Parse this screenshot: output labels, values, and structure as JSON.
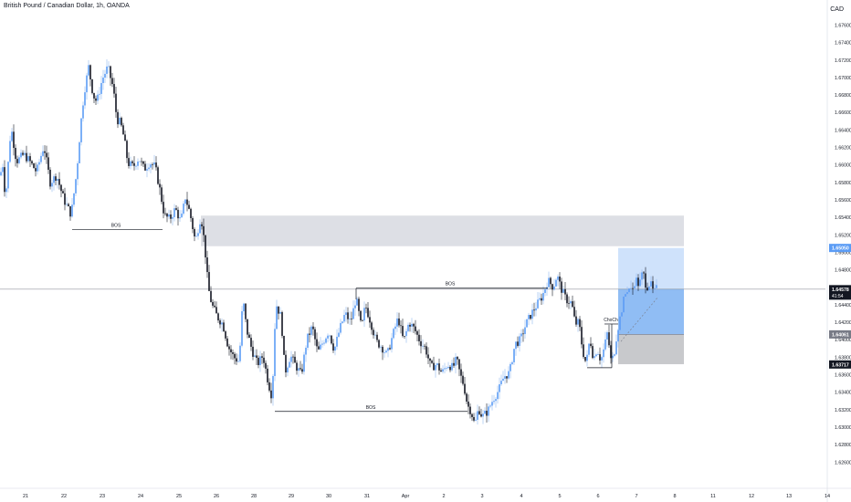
{
  "header": {
    "symbol_title": "British Pound / Canadian Dollar, 1h, OANDA",
    "currency": "CAD"
  },
  "chart_data": {
    "type": "candlestick",
    "title": "British Pound / Canadian Dollar, 1h, OANDA",
    "y_axis": {
      "side": "right",
      "ticks": [
        "1.67600",
        "1.67400",
        "1.67200",
        "1.67000",
        "1.66800",
        "1.66600",
        "1.66400",
        "1.66200",
        "1.66000",
        "1.65800",
        "1.65600",
        "1.65400",
        "1.65200",
        "1.65000",
        "1.64800",
        "1.64600",
        "1.64400",
        "1.64200",
        "1.64000",
        "1.63800",
        "1.63600",
        "1.63400",
        "1.63200",
        "1.63000",
        "1.62800",
        "1.62600"
      ],
      "ylim": [
        1.6253,
        1.6773
      ]
    },
    "x_axis": {
      "ticks": [
        "21",
        "22",
        "23",
        "24",
        "25",
        "26",
        "28",
        "29",
        "30",
        "31",
        "Apr",
        "2",
        "3",
        "4",
        "5",
        "6",
        "7",
        "8",
        "11",
        "12",
        "13",
        "14",
        "15",
        "18",
        "19"
      ]
    },
    "price_labels": [
      {
        "value": "1.65050",
        "color": "#5b9cf5",
        "text_color": "#ffffff"
      },
      {
        "value": "1.64578",
        "sub": "41:54",
        "color": "#131722",
        "text_color": "#ffffff"
      },
      {
        "value": "1.64061",
        "color": "#787b86",
        "text_color": "#ffffff"
      },
      {
        "value": "1.63717",
        "color": "#131722",
        "text_color": "#ffffff"
      }
    ],
    "current_price": 1.64578,
    "annotations": [
      {
        "type": "bos",
        "label": "BOS",
        "price": 1.6526,
        "from_day": "22",
        "to_day": "25"
      },
      {
        "type": "bos",
        "label": "BOS",
        "price": 1.6459,
        "from_day": "31",
        "to_day": "8"
      },
      {
        "type": "bos",
        "label": "BOS",
        "price": 1.6318,
        "from_day": "29",
        "to_day": "6"
      },
      {
        "type": "chach",
        "label": "ChoCh"
      },
      {
        "type": "supply_zone",
        "top": 1.6542,
        "bottom": 1.6507
      },
      {
        "type": "position_long",
        "entry": 1.64578,
        "target": 1.6505,
        "stop": 1.6372
      }
    ],
    "series": [
      {
        "key_points": [
          [
            0,
            1.6588
          ],
          [
            3,
            1.66
          ],
          [
            6,
            1.656
          ],
          [
            12,
            1.6644
          ],
          [
            18,
            1.6604
          ],
          [
            26,
            1.6612
          ],
          [
            32,
            1.6605
          ],
          [
            40,
            1.6592
          ],
          [
            48,
            1.6622
          ],
          [
            55,
            1.658
          ],
          [
            62,
            1.6588
          ],
          [
            70,
            1.656
          ],
          [
            78,
            1.6543
          ],
          [
            84,
            1.6592
          ],
          [
            88,
            1.6642
          ],
          [
            92,
            1.6682
          ],
          [
            97,
            1.6712
          ],
          [
            102,
            1.668
          ],
          [
            106,
            1.6672
          ],
          [
            112,
            1.6698
          ],
          [
            118,
            1.6712
          ],
          [
            124,
            1.6688
          ],
          [
            128,
            1.6652
          ],
          [
            132,
            1.6648
          ],
          [
            136,
            1.663
          ],
          [
            140,
            1.6602
          ],
          [
            146,
            1.6598
          ],
          [
            152,
            1.6608
          ],
          [
            158,
            1.6595
          ],
          [
            164,
            1.6603
          ],
          [
            170,
            1.6598
          ],
          [
            175,
            1.6572
          ],
          [
            180,
            1.6542
          ],
          [
            186,
            1.6538
          ],
          [
            192,
            1.655
          ],
          [
            198,
            1.6535
          ],
          [
            203,
            1.6563
          ],
          [
            208,
            1.6545
          ],
          [
            214,
            1.6512
          ],
          [
            220,
            1.6542
          ],
          [
            224,
            1.651
          ],
          [
            228,
            1.646
          ],
          [
            232,
            1.644
          ],
          [
            238,
            1.6426
          ],
          [
            244,
            1.6418
          ],
          [
            250,
            1.6392
          ],
          [
            256,
            1.638
          ],
          [
            262,
            1.6375
          ],
          [
            266,
            1.6448
          ],
          [
            270,
            1.6412
          ],
          [
            276,
            1.6388
          ],
          [
            282,
            1.6372
          ],
          [
            288,
            1.6382
          ],
          [
            294,
            1.635
          ],
          [
            298,
            1.6334
          ],
          [
            302,
            1.6442
          ],
          [
            308,
            1.6425
          ],
          [
            312,
            1.6362
          ],
          [
            318,
            1.6382
          ],
          [
            324,
            1.637
          ],
          [
            330,
            1.636
          ],
          [
            336,
            1.64
          ],
          [
            342,
            1.6415
          ],
          [
            348,
            1.6385
          ],
          [
            354,
            1.6398
          ],
          [
            360,
            1.641
          ],
          [
            366,
            1.6388
          ],
          [
            372,
            1.6412
          ],
          [
            378,
            1.643
          ],
          [
            384,
            1.642
          ],
          [
            390,
            1.6448
          ],
          [
            396,
            1.6412
          ],
          [
            400,
            1.644
          ],
          [
            406,
            1.642
          ],
          [
            412,
            1.6398
          ],
          [
            418,
            1.6392
          ],
          [
            424,
            1.6382
          ],
          [
            430,
            1.6405
          ],
          [
            436,
            1.6425
          ],
          [
            442,
            1.6398
          ],
          [
            448,
            1.642
          ],
          [
            454,
            1.6412
          ],
          [
            460,
            1.6398
          ],
          [
            466,
            1.639
          ],
          [
            472,
            1.6368
          ],
          [
            478,
            1.6372
          ],
          [
            484,
            1.6362
          ],
          [
            490,
            1.6372
          ],
          [
            496,
            1.6368
          ],
          [
            500,
            1.6378
          ],
          [
            504,
            1.636
          ],
          [
            508,
            1.6348
          ],
          [
            512,
            1.6325
          ],
          [
            516,
            1.6318
          ],
          [
            520,
            1.6302
          ],
          [
            524,
            1.6322
          ],
          [
            528,
            1.6312
          ],
          [
            534,
            1.6318
          ],
          [
            540,
            1.6332
          ],
          [
            546,
            1.6342
          ],
          [
            552,
            1.6358
          ],
          [
            558,
            1.6362
          ],
          [
            564,
            1.6395
          ],
          [
            570,
            1.64
          ],
          [
            576,
            1.6418
          ],
          [
            582,
            1.643
          ],
          [
            588,
            1.644
          ],
          [
            594,
            1.645
          ],
          [
            600,
            1.6468
          ],
          [
            606,
            1.646
          ],
          [
            610,
            1.6474
          ],
          [
            614,
            1.646
          ],
          [
            620,
            1.6446
          ],
          [
            626,
            1.6442
          ],
          [
            630,
            1.6418
          ],
          [
            634,
            1.642
          ],
          [
            638,
            1.6388
          ],
          [
            642,
            1.6372
          ],
          [
            646,
            1.6402
          ],
          [
            650,
            1.6378
          ],
          [
            654,
            1.639
          ],
          [
            658,
            1.6376
          ],
          [
            662,
            1.6392
          ],
          [
            666,
            1.6412
          ],
          [
            668,
            1.6376
          ],
          [
            672,
            1.638
          ],
          [
            676,
            1.641
          ],
          [
            680,
            1.643
          ],
          [
            684,
            1.645
          ],
          [
            688,
            1.646
          ],
          [
            692,
            1.6455
          ],
          [
            696,
            1.647
          ],
          [
            700,
            1.6462
          ],
          [
            704,
            1.6478
          ],
          [
            708,
            1.646
          ],
          [
            712,
            1.6465
          ],
          [
            716,
            1.6453
          ],
          [
            720,
            1.646
          ]
        ]
      }
    ]
  }
}
